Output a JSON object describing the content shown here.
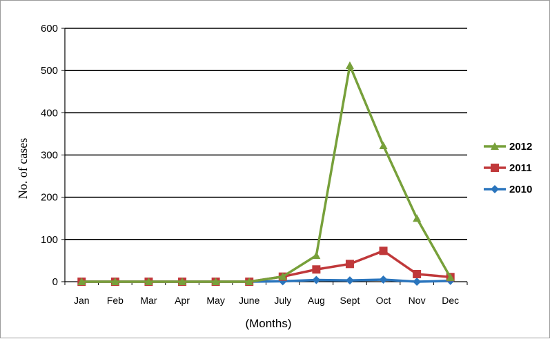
{
  "chart_data": {
    "type": "line",
    "title": "",
    "xlabel": "(Months)",
    "ylabel": "No. of cases",
    "categories": [
      "Jan",
      "Feb",
      "Mar",
      "Apr",
      "May",
      "June",
      "July",
      "Aug",
      "Sept",
      "Oct",
      "Nov",
      "Dec"
    ],
    "yticks": [
      "0",
      "100",
      "200",
      "300",
      "400",
      "500",
      "600"
    ],
    "ylim": [
      0,
      600
    ],
    "grid": "horizontal",
    "legend_position": "right",
    "series": [
      {
        "name": "2012",
        "color": "#77a03a",
        "marker": "triangle",
        "values": [
          0,
          0,
          0,
          0,
          0,
          0,
          12,
          62,
          512,
          322,
          150,
          10
        ]
      },
      {
        "name": "2011",
        "color": "#c0383a",
        "marker": "square",
        "values": [
          0,
          0,
          0,
          0,
          0,
          0,
          12,
          29,
          42,
          73,
          18,
          11
        ]
      },
      {
        "name": "2010",
        "color": "#2a75bd",
        "marker": "diamond",
        "values": [
          0,
          0,
          0,
          0,
          0,
          0,
          1,
          4,
          3,
          5,
          0,
          2
        ]
      }
    ]
  }
}
